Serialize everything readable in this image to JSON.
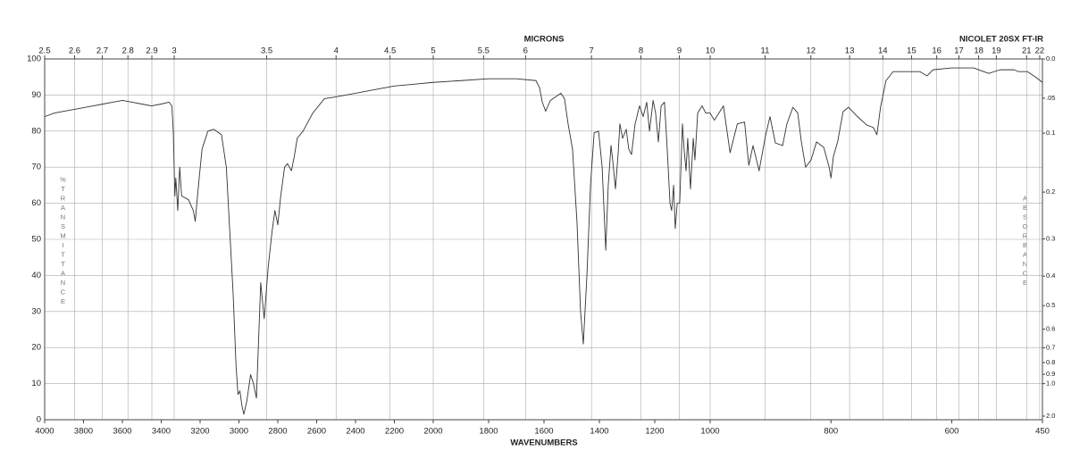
{
  "chart_data": {
    "type": "line",
    "x2label": "MICRONS",
    "instrument": "NICOLET 20SX FT-IR",
    "xlabel": "WAVENUMBERS",
    "ylabel": "%TRANSMITTANCE",
    "y2label": "ABSORBANCE",
    "color": "#333333",
    "grid": true,
    "xlim": [
      4000,
      450
    ],
    "x_scale_breaks": [
      2000,
      1000
    ],
    "xticks": [
      4000,
      3800,
      3600,
      3400,
      3200,
      3000,
      2800,
      2600,
      2400,
      2200,
      2000,
      1800,
      1600,
      1400,
      1200,
      1000,
      800,
      600,
      450
    ],
    "x2ticks": [
      2.5,
      2.6,
      2.7,
      2.8,
      2.9,
      3,
      3.5,
      4,
      4.5,
      5,
      5.5,
      6,
      7,
      8,
      9,
      10,
      11,
      12,
      13,
      14,
      15,
      16,
      17,
      18,
      19,
      21,
      22
    ],
    "ylim": [
      0,
      100
    ],
    "yticks": [
      0,
      10,
      20,
      30,
      40,
      50,
      60,
      70,
      80,
      90,
      100
    ],
    "y2ticks": [
      {
        "value": 0,
        "label": "0.0"
      },
      {
        "value": 0.05,
        "label": ".05"
      },
      0.1,
      0.2,
      0.3,
      0.4,
      0.5,
      0.6,
      0.7,
      0.8,
      0.9,
      {
        "value": 1,
        "label": "1.0"
      },
      {
        "value": 2,
        "label": "2.0"
      }
    ],
    "x": [
      4000,
      3950,
      3900,
      3850,
      3800,
      3750,
      3700,
      3650,
      3600,
      3550,
      3500,
      3450,
      3400,
      3360,
      3345,
      3338,
      3330,
      3325,
      3315,
      3305,
      3295,
      3260,
      3235,
      3225,
      3210,
      3190,
      3160,
      3130,
      3090,
      3065,
      3050,
      3030,
      3015,
      3005,
      2995,
      2985,
      2975,
      2960,
      2940,
      2925,
      2910,
      2888,
      2870,
      2850,
      2830,
      2815,
      2800,
      2785,
      2765,
      2750,
      2730,
      2715,
      2700,
      2670,
      2620,
      2560,
      2500,
      2400,
      2300,
      2200,
      2100,
      2000,
      1900,
      1800,
      1700,
      1629,
      1616,
      1606,
      1594,
      1577,
      1539,
      1526,
      1513,
      1497,
      1481,
      1468,
      1458,
      1445,
      1432,
      1419,
      1403,
      1390,
      1377,
      1368,
      1358,
      1352,
      1342,
      1332,
      1326,
      1316,
      1303,
      1294,
      1284,
      1271,
      1255,
      1242,
      1229,
      1219,
      1206,
      1197,
      1187,
      1177,
      1165,
      1155,
      1145,
      1139,
      1132,
      1126,
      1119,
      1110,
      1100,
      1094,
      1087,
      1081,
      1071,
      1061,
      1055,
      1045,
      1029,
      1016,
      1000,
      993,
      978,
      967,
      955,
      943,
      936,
      929,
      919,
      908,
      901,
      892,
      880,
      873,
      863,
      855,
      849,
      842,
      833,
      824,
      812,
      803,
      800,
      796,
      789,
      780,
      771,
      756,
      741,
      730,
      724,
      718,
      709,
      697,
      653,
      641,
      631,
      600,
      564,
      539,
      520,
      497,
      490,
      475,
      460,
      450
    ],
    "values": [
      84,
      85,
      85.5,
      86,
      86.5,
      87,
      87.5,
      88,
      88.5,
      88,
      87.5,
      87,
      87.5,
      88,
      87,
      80,
      62,
      67,
      58,
      70,
      62,
      61,
      58,
      55,
      64,
      75,
      80,
      80.5,
      79,
      70,
      55,
      35,
      15,
      7,
      8,
      4,
      1.5,
      5,
      12.5,
      10,
      6,
      38,
      28,
      42,
      52,
      58,
      54,
      62,
      70,
      71,
      69,
      73,
      78,
      80,
      85,
      89,
      89.5,
      90.5,
      91.5,
      92.5,
      93,
      93.5,
      94,
      94.5,
      94.5,
      94,
      92,
      88,
      85.5,
      88.5,
      90.5,
      89,
      82,
      75,
      55,
      30,
      21,
      40,
      65,
      79.5,
      80,
      70,
      47,
      65,
      76,
      72,
      64,
      74,
      82,
      78,
      80.5,
      75,
      73.5,
      82,
      87,
      84,
      88,
      80,
      88.5,
      85,
      77,
      87,
      88,
      75,
      60,
      58,
      65,
      53,
      60,
      60,
      82,
      75,
      69,
      78,
      64,
      78,
      72,
      85,
      87,
      85,
      85,
      83,
      87,
      74,
      82,
      82.5,
      70.5,
      76,
      69,
      79,
      84,
      76.7,
      76,
      82,
      86.6,
      85,
      77,
      70,
      72,
      77,
      75.5,
      70,
      67,
      73,
      77,
      85.4,
      86.6,
      84,
      81.7,
      81,
      79,
      86.6,
      94,
      96.5,
      96.5,
      95.3,
      97,
      97.5,
      97.5,
      96,
      97,
      97,
      96.5,
      96.5,
      94.8,
      93.5
    ]
  }
}
